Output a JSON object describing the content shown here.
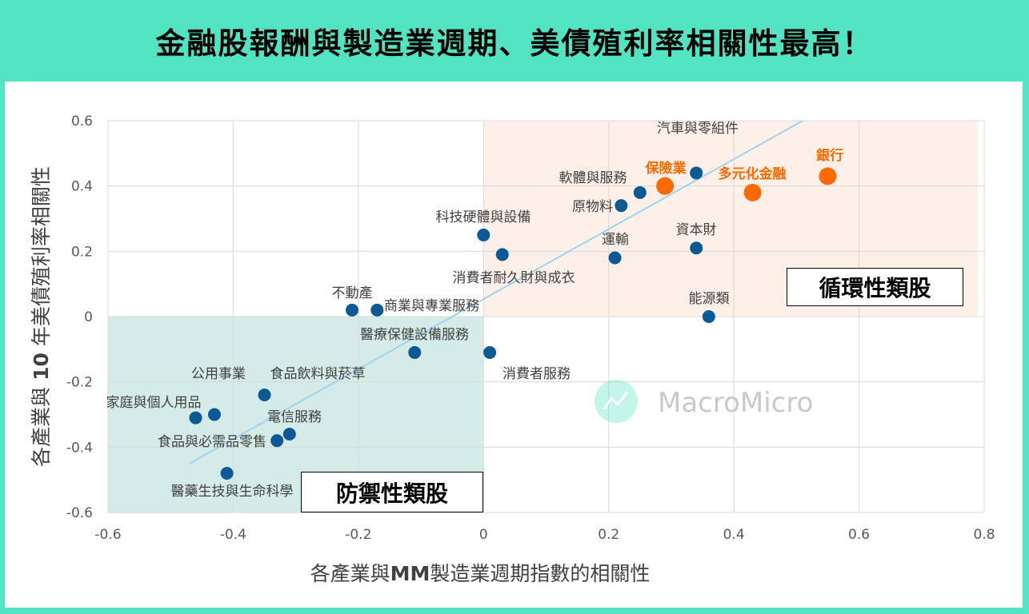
{
  "title": "金融股報酬與製造業週期、美債殖利率相關性最高！",
  "chart_data": {
    "type": "scatter",
    "title": "金融股報酬與製造業週期、美債殖利率相關性最高！",
    "xlabel_parts": [
      "各產業與",
      "MM",
      "製造業週期指數的相關性"
    ],
    "ylabel_parts": [
      "各產業與 ",
      "10",
      " 年美債殖利率相關性"
    ],
    "xlim": [
      -0.6,
      0.8
    ],
    "ylim": [
      -0.6,
      0.6
    ],
    "xticks": [
      "-0.6",
      "-0.4",
      "-0.2",
      "0",
      "0.2",
      "0.4",
      "0.6",
      "0.8"
    ],
    "yticks": [
      "0.6",
      "0.4",
      "0.2",
      "0",
      "-0.2",
      "-0.4",
      "-0.6"
    ],
    "grid": true,
    "points": [
      {
        "name": "汽車與零組件",
        "x": 0.34,
        "y": 0.44,
        "highlight": false
      },
      {
        "name": "銀行",
        "x": 0.55,
        "y": 0.43,
        "highlight": true
      },
      {
        "name": "多元化金融",
        "x": 0.43,
        "y": 0.38,
        "highlight": true
      },
      {
        "name": "保險業",
        "x": 0.29,
        "y": 0.4,
        "highlight": true
      },
      {
        "name": "軟體與服務",
        "x": 0.25,
        "y": 0.38,
        "highlight": false
      },
      {
        "name": "原物料",
        "x": 0.22,
        "y": 0.34,
        "highlight": false
      },
      {
        "name": "科技硬體與設備",
        "x": 0.0,
        "y": 0.25,
        "highlight": false
      },
      {
        "name": "消費者耐久財與成衣",
        "x": 0.03,
        "y": 0.19,
        "highlight": false
      },
      {
        "name": "運輸",
        "x": 0.21,
        "y": 0.18,
        "highlight": false
      },
      {
        "name": "資本財",
        "x": 0.34,
        "y": 0.21,
        "highlight": false
      },
      {
        "name": "能源類",
        "x": 0.36,
        "y": 0.0,
        "highlight": false
      },
      {
        "name": "不動產",
        "x": -0.21,
        "y": 0.02,
        "highlight": false
      },
      {
        "name": "商業與專業服務",
        "x": -0.17,
        "y": 0.02,
        "highlight": false
      },
      {
        "name": "醫療保健設備服務",
        "x": -0.11,
        "y": -0.11,
        "highlight": false
      },
      {
        "name": "消費者服務",
        "x": 0.01,
        "y": -0.11,
        "highlight": false
      },
      {
        "name": "食品飲料與菸草",
        "x": -0.35,
        "y": -0.24,
        "highlight": false
      },
      {
        "name": "公用事業",
        "x": -0.43,
        "y": -0.3,
        "highlight": false
      },
      {
        "name": "家庭與個人用品",
        "x": -0.46,
        "y": -0.31,
        "highlight": false
      },
      {
        "name": "電信服務",
        "x": -0.31,
        "y": -0.36,
        "highlight": false
      },
      {
        "name": "食品與必需品零售",
        "x": -0.33,
        "y": -0.38,
        "highlight": false
      },
      {
        "name": "醫藥生技與生命科學",
        "x": -0.41,
        "y": -0.48,
        "highlight": false
      }
    ],
    "trendline": {
      "x": [
        -0.47,
        0.51
      ],
      "y": [
        -0.45,
        0.6
      ]
    },
    "regions": [
      {
        "label": "循環性類股",
        "x": [
          0,
          0.79
        ],
        "y": [
          0,
          0.6
        ],
        "color": "#fdf0e8"
      },
      {
        "label": "防禦性類股",
        "x": [
          -0.6,
          0
        ],
        "y": [
          -0.6,
          0
        ],
        "color": "#d5ebe8"
      }
    ],
    "colors": {
      "point": "#0b5a96",
      "highlight": "#ff6a00",
      "trendline": "#9fd4ee",
      "frame": "#52e3c2"
    }
  },
  "watermark": "MacroMicro"
}
